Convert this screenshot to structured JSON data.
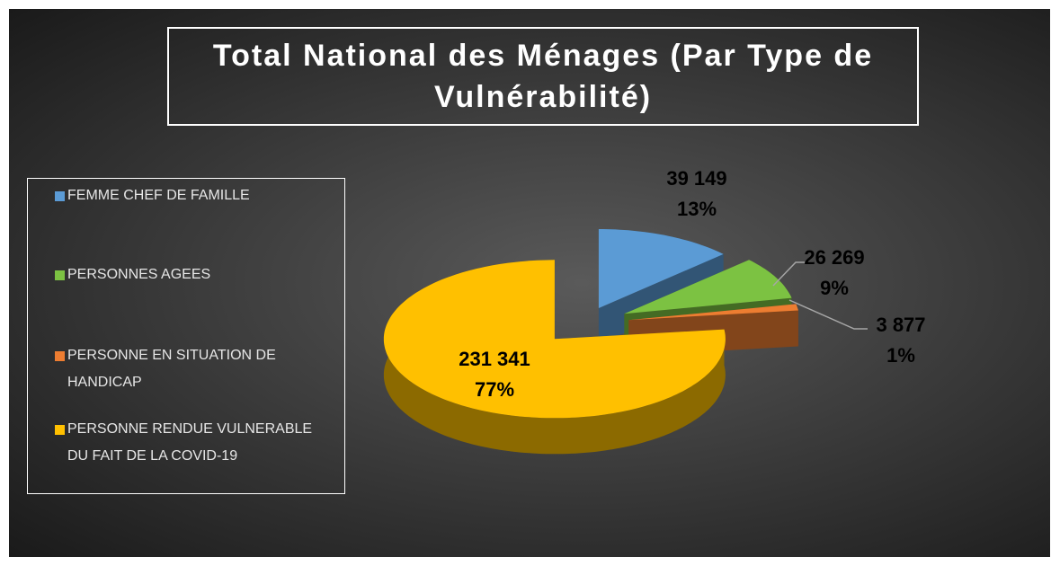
{
  "chart_data": {
    "type": "pie",
    "title": "Total National des Ménages (Par Type de Vulnérabilité)",
    "categories": [
      "FEMME CHEF DE FAMILLE",
      "PERSONNES AGEES",
      "PERSONNE EN SITUATION DE HANDICAP",
      "PERSONNE RENDUE VULNERABLE DU FAIT DE LA COVID-19"
    ],
    "values": [
      39149,
      26269,
      3877,
      231341
    ],
    "value_labels": [
      "39 149",
      "26 269",
      "3 877",
      "231 341"
    ],
    "percent_labels": [
      "13%",
      "9%",
      "1%",
      "77%"
    ],
    "colors": [
      "#5b9bd5",
      "#7cc242",
      "#ed7d31",
      "#ffc000"
    ],
    "legend": "left"
  }
}
